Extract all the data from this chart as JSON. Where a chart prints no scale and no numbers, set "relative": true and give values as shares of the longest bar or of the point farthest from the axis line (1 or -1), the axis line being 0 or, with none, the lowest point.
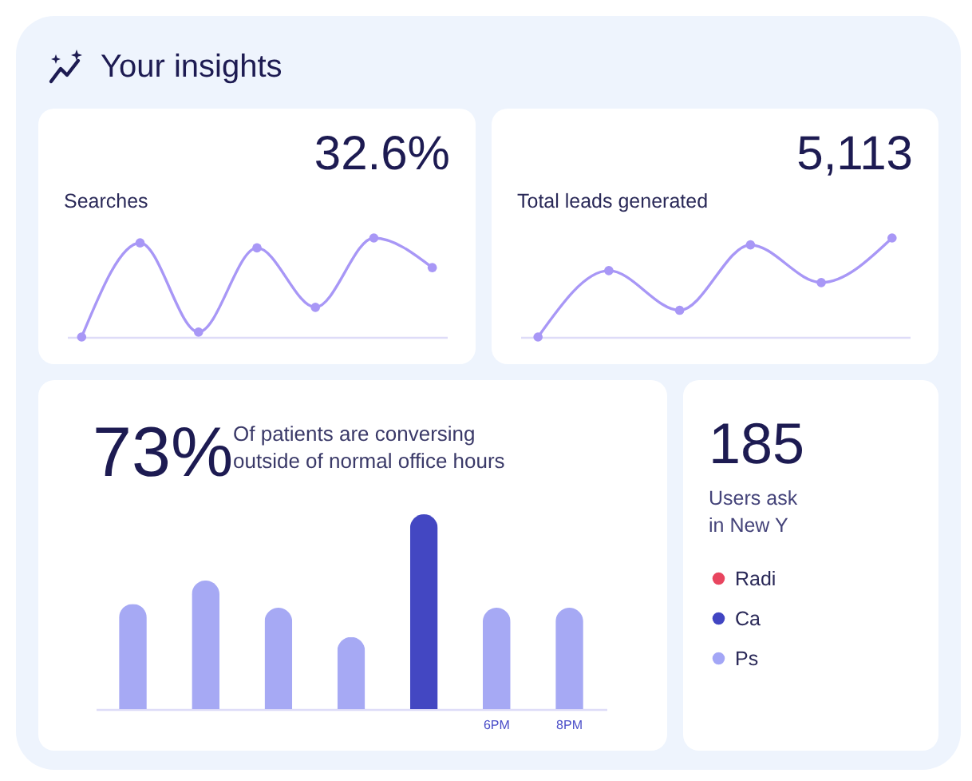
{
  "chart_data": [
    {
      "type": "other",
      "title": "Your insights"
    },
    {
      "type": "line",
      "title": "32.6%",
      "subtitle": "Searches",
      "relative": true,
      "tick_labels": false,
      "categories": [
        null,
        null,
        null,
        null,
        null,
        null,
        null
      ],
      "marker": "circle",
      "series": [
        {
          "color": "#a897f6",
          "values": [
            0,
            0.95,
            0.05,
            0.9,
            0.3,
            1,
            0.7
          ]
        }
      ]
    },
    {
      "type": "line",
      "title": "5,113",
      "subtitle": "Total leads generated",
      "relative": true,
      "tick_labels": false,
      "categories": [
        null,
        null,
        null,
        null,
        null,
        null
      ],
      "marker": "circle",
      "series": [
        {
          "color": "#a897f6",
          "values": [
            0,
            0.67,
            0.27,
            0.93,
            0.55,
            1
          ]
        }
      ]
    },
    {
      "type": "bar",
      "title": "73%",
      "subtitle": "Of patients are conversing outside of normal office hours",
      "relative": true,
      "tick_labels": "x",
      "categories": [
        null,
        null,
        null,
        null,
        null,
        "6PM",
        "8PM"
      ],
      "values": [
        0.54,
        0.66,
        0.52,
        0.37,
        1,
        0.52,
        0.52
      ],
      "colors": [
        "#a6a9f4",
        "#a6a9f4",
        "#a6a9f4",
        "#a6a9f4",
        "#4347c2",
        "#a6a9f4",
        "#a6a9f4"
      ]
    },
    {
      "type": "other",
      "title": "185",
      "subtitle": "Users ask\nin New Y",
      "categories": [
        "Radi",
        "Ca",
        "Ps"
      ],
      "colors": [
        "#e8455f",
        "#4145c2",
        "#a3a6f6"
      ]
    }
  ]
}
